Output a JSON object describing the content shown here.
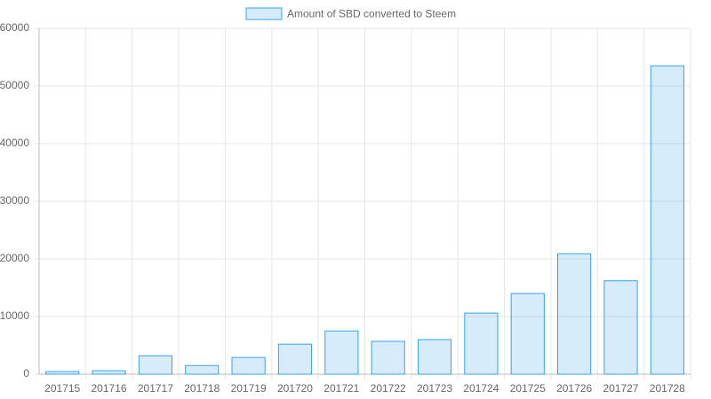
{
  "chart_data": {
    "type": "bar",
    "legend": "Amount of SBD converted to Steem",
    "categories": [
      "201715",
      "201716",
      "201717",
      "201718",
      "201719",
      "201720",
      "201721",
      "201722",
      "201723",
      "201724",
      "201725",
      "201726",
      "201727",
      "201728"
    ],
    "values": [
      450,
      600,
      3200,
      1500,
      2900,
      5200,
      7500,
      5700,
      6000,
      10600,
      14000,
      20900,
      16200,
      53500
    ],
    "color": "#36a2eb",
    "fill": "rgba(54,162,235,0.2)",
    "ylim": [
      0,
      60000
    ],
    "yticks": [
      0,
      10000,
      20000,
      30000,
      40000,
      50000,
      60000
    ],
    "grid": true
  }
}
